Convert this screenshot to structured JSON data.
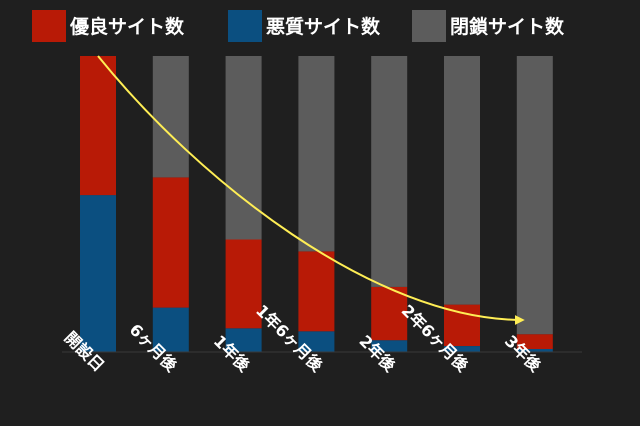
{
  "chart_data": {
    "type": "bar",
    "stacked": true,
    "categories": [
      "開設日",
      "6ヶ月後",
      "1年後",
      "1年6ヶ月後",
      "2年後",
      "2年6ヶ月後",
      "3年後"
    ],
    "series": [
      {
        "name": "悪質サイト数",
        "color": "#0b4f80",
        "values": [
          53,
          15,
          8,
          7,
          4,
          2,
          1
        ]
      },
      {
        "name": "優良サイト数",
        "color": "#b81a06",
        "values": [
          47,
          44,
          30,
          27,
          18,
          14,
          5
        ]
      },
      {
        "name": "閉鎖サイト数",
        "color": "#5c5c5c",
        "values": [
          0,
          41,
          62,
          66,
          78,
          84,
          94
        ]
      }
    ],
    "ylim": [
      0,
      100
    ],
    "legend_position": "top",
    "trend_arrow": {
      "color": "#ffee55",
      "from_category": "開設日",
      "to_category": "3年後"
    },
    "title": "",
    "xlabel": "",
    "ylabel": ""
  }
}
